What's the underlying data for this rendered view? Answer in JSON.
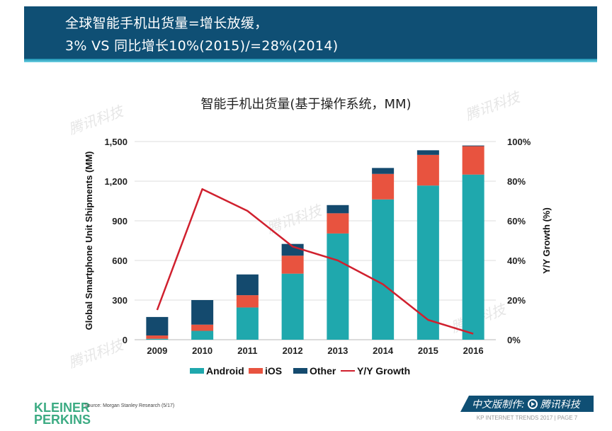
{
  "header": {
    "line1": "全球智能手机出货量=增长放缓，",
    "line2": "3% VS 同比增长10%(2015)/=28%(2014)"
  },
  "watermark": "腾讯科技",
  "chart_data": {
    "type": "bar",
    "stacked": true,
    "title": "智能手机出货量(基于操作系统，MM)",
    "categories": [
      "2009",
      "2010",
      "2011",
      "2012",
      "2013",
      "2014",
      "2015",
      "2016"
    ],
    "series": [
      {
        "name": "Android",
        "color": "#1fa8ad",
        "values": [
          7,
          67,
          244,
          500,
          804,
          1062,
          1167,
          1250
        ]
      },
      {
        "name": "iOS",
        "color": "#e8533f",
        "values": [
          25,
          47,
          93,
          136,
          153,
          193,
          232,
          215
        ]
      },
      {
        "name": "Other",
        "color": "#144a6e",
        "values": [
          140,
          186,
          157,
          89,
          62,
          45,
          35,
          5
        ]
      }
    ],
    "line_series": {
      "name": "Y/Y Growth",
      "color": "#d0202e",
      "axis": "right",
      "values": [
        15,
        76,
        65,
        47,
        40,
        28,
        10,
        3
      ]
    },
    "ylabel": "Global Smartphone Unit Shipments (MM)",
    "y2label": "Y/Y Growth (%)",
    "ylim": [
      0,
      1500
    ],
    "y2lim": [
      0,
      100
    ],
    "yticks": [
      "0",
      "300",
      "600",
      "900",
      "1,200",
      "1,500"
    ],
    "y2ticks": [
      "0%",
      "20%",
      "40%",
      "60%",
      "80%",
      "100%"
    ],
    "grid": true,
    "legend_position": "bottom",
    "legend": [
      "Android",
      "iOS",
      "Other",
      "Y/Y Growth"
    ]
  },
  "footer": {
    "logo_line1": "KLEINER",
    "logo_line2": "PERKINS",
    "source": "Source: Morgan Stanley Research (5/17)",
    "banner_prefix": "中文版制作:",
    "banner_brand": "腾讯科技",
    "trends": "KP INTERNET TRENDS 2017   |   PAGE 7"
  }
}
